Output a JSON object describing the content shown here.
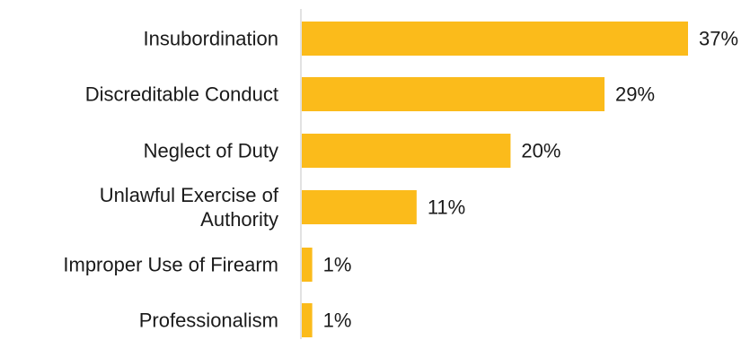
{
  "chart_data": {
    "type": "bar",
    "orientation": "horizontal",
    "categories": [
      [
        "Insubordination"
      ],
      [
        "Discreditable Conduct"
      ],
      [
        "Neglect of Duty"
      ],
      [
        "Unlawful Exercise of",
        "Authority"
      ],
      [
        "Improper Use of Firearm"
      ],
      [
        "Professionalism"
      ]
    ],
    "values": [
      37,
      29,
      20,
      11,
      1,
      1
    ],
    "value_labels": [
      "37%",
      "29%",
      "20%",
      "11%",
      "1%",
      "1%"
    ],
    "unit": "%",
    "bar_color": "#FBBB1B",
    "axis_color": "#D9D9D9",
    "xlim": [
      0,
      37
    ],
    "grid": false,
    "legend": "none"
  }
}
